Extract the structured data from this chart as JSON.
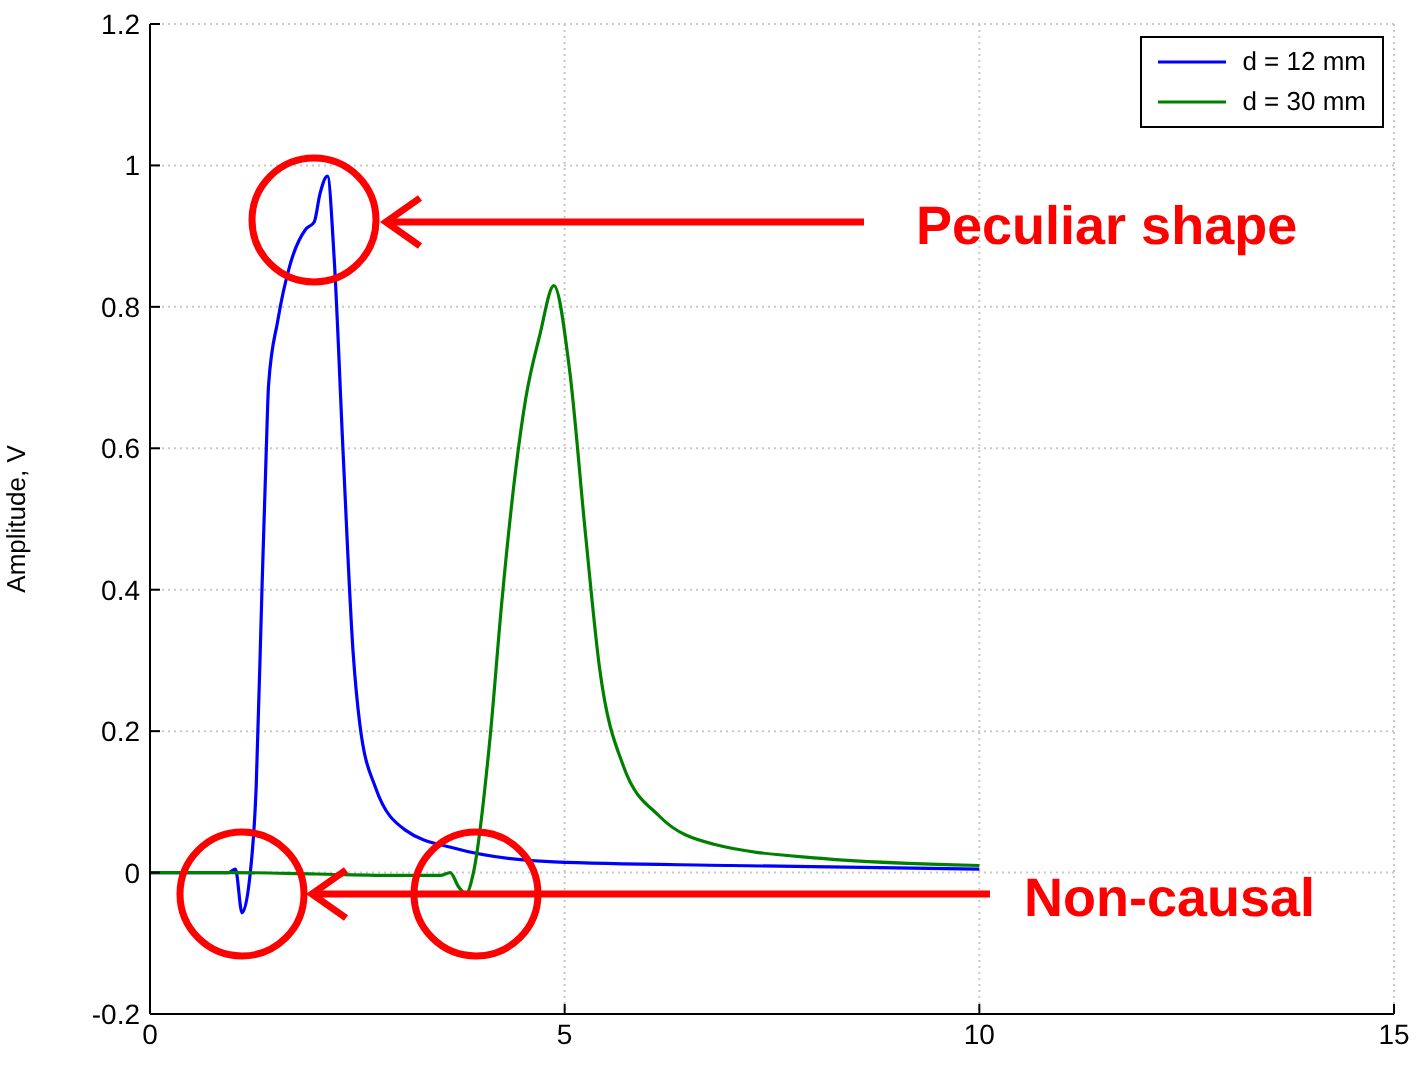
{
  "chart_data": {
    "type": "line",
    "ylabel": "Amplitude, V",
    "xlim": [
      0,
      15
    ],
    "xticks": [
      0,
      5,
      10,
      15
    ],
    "ylim": [
      -0.2,
      1.2
    ],
    "yticks": [
      -0.2,
      0,
      0.2,
      0.4,
      0.6,
      0.8,
      1,
      1.2
    ],
    "grid": true,
    "legend": "top right",
    "marker": "none",
    "line_style": "solid",
    "annotations": [
      "Peculiar shape",
      "Non-causal"
    ],
    "series": [
      {
        "name": "d = 12 mm",
        "color": "#0000ff",
        "x": [
          0,
          0.5,
          0.95,
          1.03,
          1.11,
          1.2,
          1.28,
          1.35,
          1.4,
          1.43,
          1.54,
          1.69,
          1.88,
          1.98,
          2.05,
          2.14,
          2.22,
          2.33,
          2.45,
          2.53,
          2.72,
          3.08,
          3.65,
          4.87,
          7,
          10
        ],
        "values": [
          0,
          0,
          0,
          0.005,
          -0.057,
          -0.01,
          0.12,
          0.4,
          0.59,
          0.69,
          0.78,
          0.86,
          0.91,
          0.92,
          0.96,
          0.985,
          0.87,
          0.59,
          0.31,
          0.21,
          0.12,
          0.06,
          0.035,
          0.015,
          0.01,
          0.005
        ]
      },
      {
        "name": "d = 30 mm",
        "color": "#008000",
        "x": [
          0,
          1,
          2,
          3,
          3.5,
          3.62,
          3.72,
          3.81,
          3.9,
          4.1,
          4.24,
          4.41,
          4.53,
          4.7,
          4.87,
          5.06,
          5.25,
          5.42,
          5.71,
          6.14,
          6.8,
          8.1,
          10
        ],
        "values": [
          0,
          0,
          -0.002,
          -0.004,
          -0.004,
          0,
          -0.02,
          -0.03,
          0,
          0.19,
          0.38,
          0.57,
          0.67,
          0.76,
          0.83,
          0.71,
          0.48,
          0.29,
          0.15,
          0.08,
          0.04,
          0.02,
          0.01
        ]
      }
    ]
  }
}
